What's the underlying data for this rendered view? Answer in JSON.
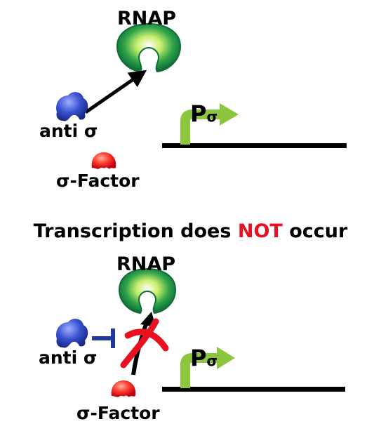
{
  "top_panel": {
    "rnap_label": "RNAP",
    "anti_sigma_label": "anti σ",
    "sigma_factor_label": "σ-Factor",
    "promoter_p": "P",
    "promoter_sub": "σ"
  },
  "headline": {
    "prefix": "Transcription does ",
    "emphasis": "NOT",
    "suffix": " occur"
  },
  "bottom_panel": {
    "rnap_label": "RNAP",
    "anti_sigma_label": "anti σ",
    "sigma_factor_label": "σ-Factor",
    "promoter_p": "P",
    "promoter_sub": "σ"
  },
  "colors": {
    "rnap_dark": "#0f7a3e",
    "rnap_light": "#8fd64a",
    "anti_sigma": "#2a3fb5",
    "sigma_factor": "#e8111f",
    "promoter": "#8cc63f",
    "emphasis": "#e8111f",
    "inhibitor": "#1f3a9c"
  }
}
